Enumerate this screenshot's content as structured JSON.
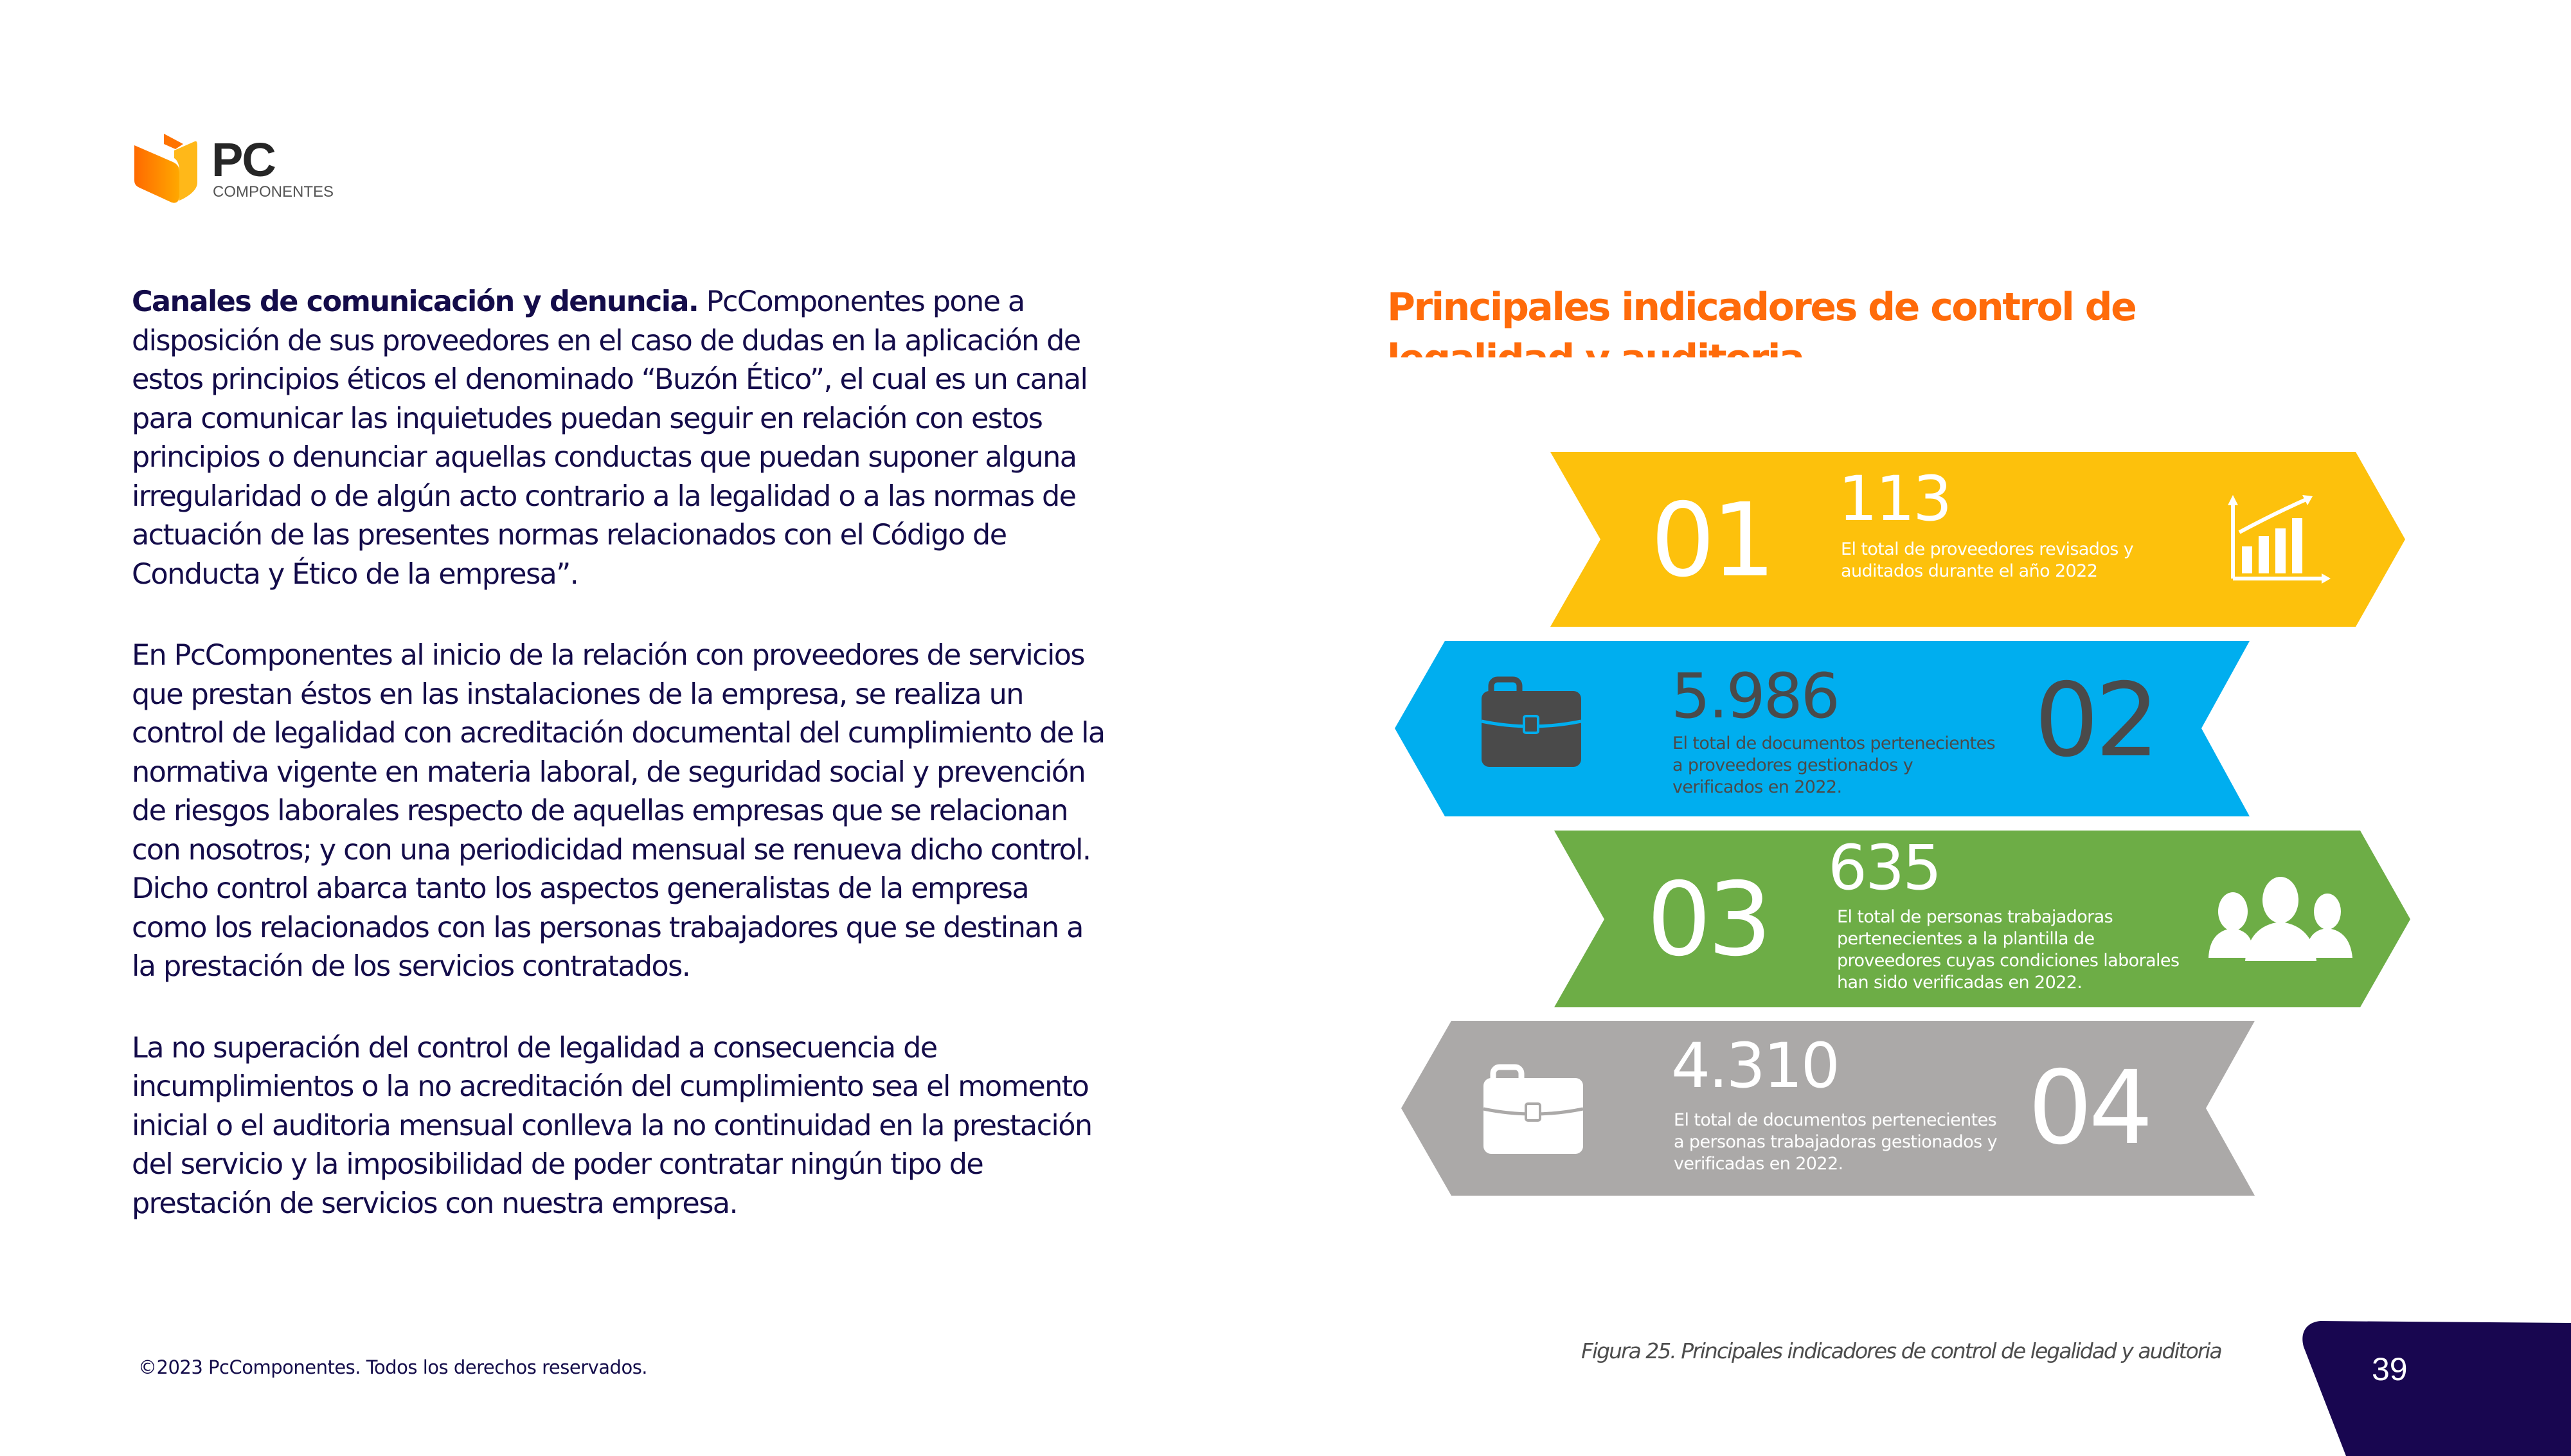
{
  "brand": {
    "logo_word": "PC",
    "logo_sub": "COMPONENTES",
    "colors": {
      "orange": "#FF6B0A",
      "navy": "#140C4A",
      "dark": "#262626"
    }
  },
  "body": {
    "paragraphs": [
      {
        "lead": "Canales de comunicación y denuncia.",
        "lines": [
          " PcComponentes pone a",
          "disposición de sus proveedores en el caso de dudas en la aplicación de",
          "estos principios éticos el denominado “Buzón Ético”, el cual es un canal",
          "para comunicar las inquietudes puedan seguir en relación con estos",
          "principios o denunciar aquellas conductas que puedan suponer alguna",
          "irregularidad o de algún acto contrario a la legalidad o a las normas de",
          "actuación de las presentes normas relacionados con el Código de",
          "Conducta y Ético de la empresa”."
        ]
      },
      {
        "lines": [
          "En PcComponentes al inicio de la relación con proveedores de servicios",
          "que prestan éstos en las instalaciones de la empresa, se realiza un",
          "control de legalidad con acreditación documental del cumplimiento de la",
          "normativa vigente en materia laboral, de seguridad social y prevención",
          "de riesgos laborales respecto de aquellas empresas que se relacionan",
          "con nosotros; y con una periodicidad mensual se renueva dicho control.",
          "Dicho control abarca tanto los aspectos generalistas de la empresa",
          "como los relacionados con las personas trabajadores que se destinan a",
          "la prestación de los servicios contratados."
        ]
      },
      {
        "lines": [
          "La no superación del control de legalidad a consecuencia de",
          "incumplimientos o la no acreditación del cumplimiento sea el momento",
          "inicial o el auditoria mensual conlleva la no continuidad en la prestación",
          "del servicio y la imposibilidad de poder contratar ningún tipo de",
          "prestación de servicios con nuestra empresa."
        ]
      }
    ]
  },
  "section": {
    "title": "Principales indicadores de control de legalidad y auditoria"
  },
  "indicators": [
    {
      "number": "01",
      "value": "113",
      "description": [
        "El total de proveedores revisados y",
        "auditados durante el año 2022"
      ],
      "icon": "bar-chart-growth-icon",
      "color": "#FDC10C",
      "text_color": "#ffffff"
    },
    {
      "number": "02",
      "value": "5.986",
      "description": [
        "El total de documentos pertenecientes",
        "a proveedores gestionados y",
        "verificados en 2022."
      ],
      "icon": "briefcase-icon",
      "color": "#00AEEF",
      "text_color": "#4a4a4a"
    },
    {
      "number": "03",
      "value": "635",
      "description": [
        "El total de personas trabajadoras",
        "pertenecientes a la plantilla de",
        "proveedores cuyas condiciones laborales",
        "han sido verificadas en 2022."
      ],
      "icon": "people-group-icon",
      "color": "#6DAD46",
      "text_color": "#ffffff"
    },
    {
      "number": "04",
      "value": "4.310",
      "description": [
        "El total de documentos pertenecientes",
        "a personas trabajadoras gestionados y",
        "verificadas en 2022."
      ],
      "icon": "briefcase-icon",
      "color": "#ABA9A8",
      "text_color": "#ffffff"
    }
  ],
  "caption": "Figura 25. Principales indicadores de control de legalidad y auditoria",
  "footer": {
    "copyright": "©2023 PcComponentes. Todos los derechos reservados.",
    "page_number": "39"
  }
}
